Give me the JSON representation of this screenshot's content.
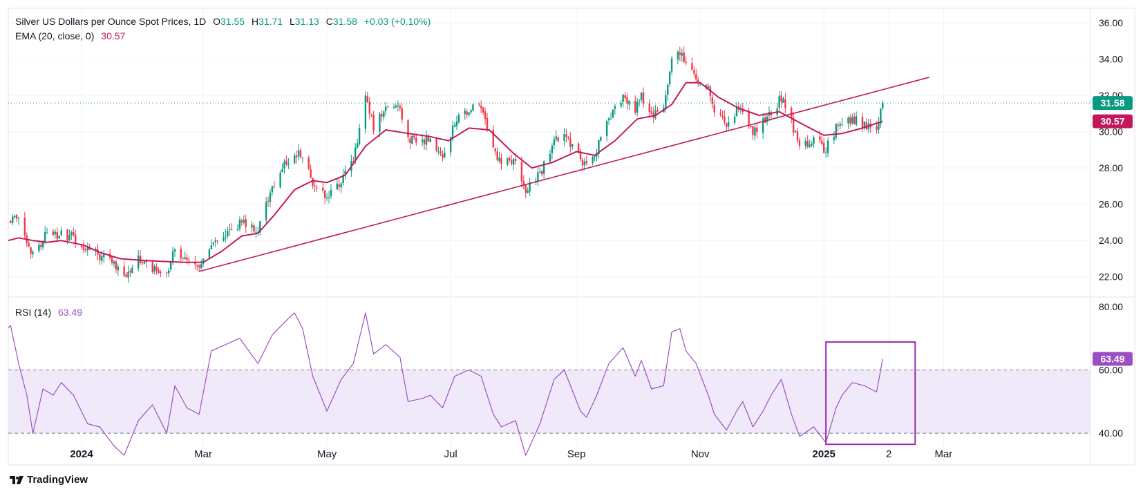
{
  "header": {
    "title": "Silver US Dollars per Ounce Spot Prices, 1D",
    "open_label": "O",
    "open": "31.55",
    "high_label": "H",
    "high": "31.71",
    "low_label": "L",
    "low": "31.13",
    "close_label": "C",
    "close": "31.58",
    "change": "+0.03 (+0.10%)",
    "ema_label": "EMA (20, close, 0)",
    "ema_value": "30.57",
    "rsi_label": "RSI (14)",
    "rsi_value": "63.49"
  },
  "brand": {
    "name": "TradingView",
    "icon": "tradingview-logo-icon"
  },
  "colors": {
    "up": "#089981",
    "down": "#f23645",
    "ema": "#c2185b",
    "trendline": "#c2185b",
    "rsi": "#9c4fc2",
    "rsi_band": "#f0e9fa",
    "box": "#9c27b0",
    "last_price": "#089981",
    "ema_tag": "#c2185b",
    "rsi_tag": "#9c4fc2"
  },
  "chart_data": [
    {
      "type": "candlestick",
      "title": "Silver US Dollars per Ounce Spot Prices, 1D",
      "ylim": [
        21,
        36.8
      ],
      "y_ticks": [
        "22.00",
        "24.00",
        "26.00",
        "28.00",
        "30.00",
        "32.00",
        "34.00",
        "36.00"
      ],
      "x_ticks": [
        "2024",
        "Mar",
        "May",
        "Jul",
        "Sep",
        "Nov",
        "2025",
        "2",
        "Mar"
      ],
      "x_tick_dates": [
        "2024-01-01",
        "2024-03-01",
        "2024-05-01",
        "2024-07-01",
        "2024-09-01",
        "2024-11-01",
        "2025-01-01",
        "2025-02-02",
        "2025-03-01"
      ],
      "last_price": 31.58,
      "last_price_label": "31.58",
      "ema_last_label": "30.57",
      "close_path": [
        [
          "2023-11-17",
          23.8
        ],
        [
          "2023-11-24",
          24.9
        ],
        [
          "2023-12-01",
          25.4
        ],
        [
          "2023-12-05",
          24.0
        ],
        [
          "2023-12-08",
          23.1
        ],
        [
          "2023-12-14",
          24.2
        ],
        [
          "2023-12-21",
          24.3
        ],
        [
          "2023-12-28",
          24.2
        ],
        [
          "2024-01-02",
          23.6
        ],
        [
          "2024-01-09",
          23.2
        ],
        [
          "2024-01-16",
          22.9
        ],
        [
          "2024-01-22",
          22.1
        ],
        [
          "2024-01-29",
          23.0
        ],
        [
          "2024-02-05",
          22.5
        ],
        [
          "2024-02-12",
          22.3
        ],
        [
          "2024-02-16",
          23.5
        ],
        [
          "2024-02-22",
          22.9
        ],
        [
          "2024-02-29",
          22.6
        ],
        [
          "2024-03-05",
          23.9
        ],
        [
          "2024-03-12",
          24.2
        ],
        [
          "2024-03-19",
          25.0
        ],
        [
          "2024-03-28",
          24.6
        ],
        [
          "2024-04-04",
          27.0
        ],
        [
          "2024-04-12",
          28.5
        ],
        [
          "2024-04-19",
          28.8
        ],
        [
          "2024-04-24",
          27.2
        ],
        [
          "2024-05-01",
          26.5
        ],
        [
          "2024-05-08",
          27.3
        ],
        [
          "2024-05-14",
          28.4
        ],
        [
          "2024-05-20",
          31.9
        ],
        [
          "2024-05-24",
          30.2
        ],
        [
          "2024-05-30",
          31.4
        ],
        [
          "2024-06-06",
          31.3
        ],
        [
          "2024-06-10",
          29.6
        ],
        [
          "2024-06-17",
          29.5
        ],
        [
          "2024-06-21",
          29.6
        ],
        [
          "2024-06-27",
          28.7
        ],
        [
          "2024-07-03",
          30.5
        ],
        [
          "2024-07-10",
          31.2
        ],
        [
          "2024-07-16",
          31.3
        ],
        [
          "2024-07-22",
          29.1
        ],
        [
          "2024-07-26",
          28.1
        ],
        [
          "2024-08-02",
          28.5
        ],
        [
          "2024-08-07",
          26.8
        ],
        [
          "2024-08-14",
          27.6
        ],
        [
          "2024-08-21",
          29.6
        ],
        [
          "2024-08-26",
          30.0
        ],
        [
          "2024-09-03",
          28.5
        ],
        [
          "2024-09-06",
          28.0
        ],
        [
          "2024-09-11",
          29.0
        ],
        [
          "2024-09-17",
          30.8
        ],
        [
          "2024-09-24",
          32.0
        ],
        [
          "2024-09-30",
          31.3
        ],
        [
          "2024-10-03",
          32.0
        ],
        [
          "2024-10-08",
          30.8
        ],
        [
          "2024-10-14",
          31.3
        ],
        [
          "2024-10-18",
          34.1
        ],
        [
          "2024-10-22",
          34.5
        ],
        [
          "2024-10-25",
          33.7
        ],
        [
          "2024-10-30",
          32.8
        ],
        [
          "2024-11-05",
          32.4
        ],
        [
          "2024-11-08",
          31.3
        ],
        [
          "2024-11-14",
          30.2
        ],
        [
          "2024-11-19",
          31.1
        ],
        [
          "2024-11-22",
          31.3
        ],
        [
          "2024-11-27",
          30.0
        ],
        [
          "2024-12-02",
          30.6
        ],
        [
          "2024-12-06",
          31.0
        ],
        [
          "2024-12-11",
          31.9
        ],
        [
          "2024-12-16",
          30.5
        ],
        [
          "2024-12-20",
          29.2
        ],
        [
          "2024-12-27",
          29.6
        ],
        [
          "2025-01-02",
          29.0
        ],
        [
          "2025-01-07",
          30.2
        ],
        [
          "2025-01-10",
          30.3
        ],
        [
          "2025-01-15",
          30.7
        ],
        [
          "2025-01-21",
          30.4
        ],
        [
          "2025-01-27",
          30.3
        ],
        [
          "2025-01-30",
          31.58
        ]
      ],
      "ema_20": [
        [
          "2023-11-17",
          23.5
        ],
        [
          "2023-11-24",
          23.95
        ],
        [
          "2023-12-01",
          24.15
        ],
        [
          "2023-12-08",
          24.0
        ],
        [
          "2023-12-15",
          23.9
        ],
        [
          "2023-12-22",
          24.0
        ],
        [
          "2024-01-02",
          23.75
        ],
        [
          "2024-01-10",
          23.35
        ],
        [
          "2024-01-20",
          23.0
        ],
        [
          "2024-02-01",
          22.9
        ],
        [
          "2024-02-10",
          22.85
        ],
        [
          "2024-02-20",
          22.8
        ],
        [
          "2024-03-01",
          22.8
        ],
        [
          "2024-03-10",
          23.4
        ],
        [
          "2024-03-20",
          24.25
        ],
        [
          "2024-03-28",
          24.4
        ],
        [
          "2024-04-05",
          25.4
        ],
        [
          "2024-04-15",
          26.8
        ],
        [
          "2024-04-24",
          27.3
        ],
        [
          "2024-05-01",
          27.2
        ],
        [
          "2024-05-10",
          27.6
        ],
        [
          "2024-05-20",
          29.2
        ],
        [
          "2024-05-30",
          30.1
        ],
        [
          "2024-06-10",
          29.9
        ],
        [
          "2024-06-20",
          29.75
        ],
        [
          "2024-06-30",
          29.5
        ],
        [
          "2024-07-10",
          30.2
        ],
        [
          "2024-07-20",
          30.1
        ],
        [
          "2024-08-01",
          28.8
        ],
        [
          "2024-08-10",
          28.0
        ],
        [
          "2024-08-20",
          28.3
        ],
        [
          "2024-09-01",
          28.9
        ],
        [
          "2024-09-10",
          28.7
        ],
        [
          "2024-09-20",
          29.5
        ],
        [
          "2024-10-01",
          30.7
        ],
        [
          "2024-10-10",
          30.9
        ],
        [
          "2024-10-18",
          31.5
        ],
        [
          "2024-10-25",
          32.7
        ],
        [
          "2024-11-01",
          32.7
        ],
        [
          "2024-11-10",
          31.9
        ],
        [
          "2024-11-20",
          31.3
        ],
        [
          "2024-11-30",
          30.9
        ],
        [
          "2024-12-10",
          31.1
        ],
        [
          "2024-12-20",
          30.5
        ],
        [
          "2025-01-01",
          29.8
        ],
        [
          "2025-01-10",
          29.9
        ],
        [
          "2025-01-20",
          30.2
        ],
        [
          "2025-01-30",
          30.57
        ]
      ],
      "trendline": [
        [
          "2024-02-28",
          22.3
        ],
        [
          "2025-02-22",
          33.0
        ]
      ]
    },
    {
      "type": "line",
      "title": "RSI (14)",
      "ylim": [
        30,
        83
      ],
      "y_ticks": [
        "40.00",
        "60.00",
        "80.00"
      ],
      "band": [
        40,
        60
      ],
      "last_label": "63.49",
      "highlight_box": {
        "x_range": [
          "2025-01-02",
          "2025-02-15"
        ],
        "y_range": [
          36.5,
          68.8
        ]
      },
      "values": [
        [
          "2023-11-17",
          68
        ],
        [
          "2023-11-22",
          71
        ],
        [
          "2023-11-27",
          74
        ],
        [
          "2023-12-01",
          62
        ],
        [
          "2023-12-05",
          52
        ],
        [
          "2023-12-08",
          40
        ],
        [
          "2023-12-13",
          54
        ],
        [
          "2023-12-18",
          52
        ],
        [
          "2023-12-22",
          56
        ],
        [
          "2023-12-28",
          52
        ],
        [
          "2024-01-04",
          43
        ],
        [
          "2024-01-10",
          42
        ],
        [
          "2024-01-17",
          36
        ],
        [
          "2024-01-22",
          33
        ],
        [
          "2024-01-29",
          44
        ],
        [
          "2024-02-05",
          49
        ],
        [
          "2024-02-12",
          40
        ],
        [
          "2024-02-16",
          55
        ],
        [
          "2024-02-22",
          48
        ],
        [
          "2024-02-28",
          46
        ],
        [
          "2024-03-05",
          66
        ],
        [
          "2024-03-12",
          68
        ],
        [
          "2024-03-19",
          70
        ],
        [
          "2024-03-28",
          62
        ],
        [
          "2024-04-04",
          71
        ],
        [
          "2024-04-10",
          75
        ],
        [
          "2024-04-15",
          78
        ],
        [
          "2024-04-19",
          73
        ],
        [
          "2024-04-24",
          58
        ],
        [
          "2024-05-01",
          47
        ],
        [
          "2024-05-08",
          57
        ],
        [
          "2024-05-14",
          62
        ],
        [
          "2024-05-20",
          78
        ],
        [
          "2024-05-24",
          65
        ],
        [
          "2024-05-30",
          68
        ],
        [
          "2024-06-06",
          64
        ],
        [
          "2024-06-10",
          50
        ],
        [
          "2024-06-17",
          51
        ],
        [
          "2024-06-21",
          52
        ],
        [
          "2024-06-27",
          48
        ],
        [
          "2024-07-03",
          58
        ],
        [
          "2024-07-10",
          60
        ],
        [
          "2024-07-16",
          58
        ],
        [
          "2024-07-22",
          46
        ],
        [
          "2024-07-26",
          42
        ],
        [
          "2024-08-02",
          44
        ],
        [
          "2024-08-07",
          33
        ],
        [
          "2024-08-14",
          43
        ],
        [
          "2024-08-21",
          57
        ],
        [
          "2024-08-26",
          60
        ],
        [
          "2024-09-03",
          47
        ],
        [
          "2024-09-06",
          45
        ],
        [
          "2024-09-11",
          52
        ],
        [
          "2024-09-17",
          62
        ],
        [
          "2024-09-24",
          67
        ],
        [
          "2024-09-30",
          58
        ],
        [
          "2024-10-03",
          63
        ],
        [
          "2024-10-08",
          54
        ],
        [
          "2024-10-14",
          55
        ],
        [
          "2024-10-18",
          72
        ],
        [
          "2024-10-22",
          73
        ],
        [
          "2024-10-25",
          66
        ],
        [
          "2024-10-30",
          62
        ],
        [
          "2024-11-05",
          52
        ],
        [
          "2024-11-08",
          46
        ],
        [
          "2024-11-14",
          41
        ],
        [
          "2024-11-19",
          47
        ],
        [
          "2024-11-22",
          50
        ],
        [
          "2024-11-27",
          42
        ],
        [
          "2024-12-02",
          47
        ],
        [
          "2024-12-06",
          52
        ],
        [
          "2024-12-11",
          57
        ],
        [
          "2024-12-16",
          46
        ],
        [
          "2024-12-20",
          39
        ],
        [
          "2024-12-27",
          42
        ],
        [
          "2025-01-02",
          37
        ],
        [
          "2025-01-07",
          48
        ],
        [
          "2025-01-10",
          52
        ],
        [
          "2025-01-15",
          56
        ],
        [
          "2025-01-21",
          55
        ],
        [
          "2025-01-27",
          53
        ],
        [
          "2025-01-30",
          63.49
        ]
      ]
    }
  ]
}
